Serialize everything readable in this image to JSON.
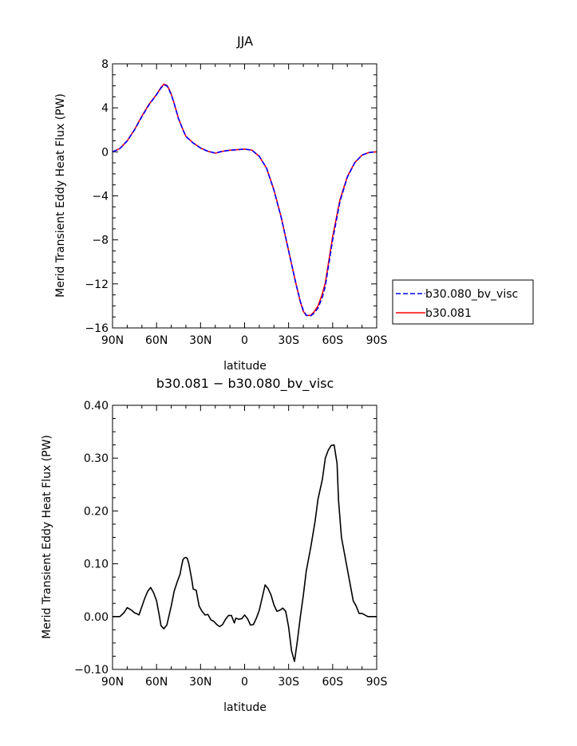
{
  "chart_data": [
    {
      "type": "line",
      "title": "JJA",
      "xlabel": "latitude",
      "ylabel": "Merid Transient Eddy Heat Flux (PW)",
      "x_tick_labels": [
        "90N",
        "60N",
        "30N",
        "0",
        "30S",
        "60S",
        "90S"
      ],
      "x_tick_values": [
        90,
        60,
        30,
        0,
        -30,
        -60,
        -90
      ],
      "xlim": [
        90,
        -90
      ],
      "y_tick_labels": [
        "8",
        "4",
        "0",
        "−4",
        "−8",
        "−12",
        "−16"
      ],
      "y_tick_values": [
        8,
        4,
        0,
        -4,
        -8,
        -12,
        -16
      ],
      "ylim": [
        -16,
        8
      ],
      "legend_position": "outside-right",
      "series": [
        {
          "name": "b30.080_bv_visc",
          "color": "#0000ff",
          "dash": "dashed",
          "x": [
            90,
            85,
            80,
            75,
            70,
            65,
            60,
            57,
            55,
            53,
            52,
            50,
            48,
            45,
            42,
            40,
            35,
            30,
            25,
            20,
            15,
            10,
            5,
            0,
            -5,
            -10,
            -15,
            -20,
            -25,
            -30,
            -35,
            -38,
            -40,
            -42,
            -45,
            -47,
            -50,
            -53,
            -55,
            -60,
            -65,
            -70,
            -75,
            -80,
            -85,
            -90
          ],
          "y": [
            0,
            0.3,
            1.0,
            2.0,
            3.2,
            4.3,
            5.2,
            5.8,
            6.1,
            6.0,
            5.8,
            5.2,
            4.4,
            3.0,
            2.0,
            1.4,
            0.8,
            0.35,
            0.05,
            -0.1,
            0.05,
            0.15,
            0.2,
            0.25,
            0.15,
            -0.4,
            -1.5,
            -3.5,
            -6.0,
            -9.0,
            -12.0,
            -13.6,
            -14.4,
            -14.85,
            -14.9,
            -14.7,
            -14.2,
            -13.2,
            -12.2,
            -8.0,
            -4.5,
            -2.3,
            -1.0,
            -0.3,
            -0.05,
            0
          ]
        },
        {
          "name": "b30.081",
          "color": "#ff0000",
          "dash": "solid",
          "x": [
            90,
            85,
            80,
            75,
            70,
            65,
            60,
            57,
            55,
            53,
            52,
            50,
            48,
            45,
            42,
            40,
            35,
            30,
            25,
            20,
            15,
            10,
            5,
            0,
            -5,
            -10,
            -15,
            -20,
            -25,
            -30,
            -35,
            -38,
            -40,
            -42,
            -45,
            -47,
            -50,
            -53,
            -55,
            -60,
            -65,
            -70,
            -75,
            -80,
            -85,
            -90
          ],
          "y": [
            0,
            0.3,
            1.0,
            2.02,
            3.25,
            4.35,
            5.21,
            5.85,
            6.15,
            6.05,
            5.85,
            5.25,
            4.4,
            3.01,
            2.01,
            1.41,
            0.81,
            0.35,
            0.05,
            -0.12,
            0.05,
            0.15,
            0.2,
            0.25,
            0.16,
            -0.42,
            -1.49,
            -3.46,
            -5.97,
            -8.99,
            -12.0,
            -13.65,
            -14.49,
            -14.87,
            -14.85,
            -14.6,
            -14.0,
            -12.9,
            -11.9,
            -7.7,
            -4.35,
            -2.25,
            -0.99,
            -0.3,
            -0.05,
            0
          ]
        }
      ]
    },
    {
      "type": "line",
      "title": "b30.081 − b30.080_bv_visc",
      "xlabel": "latitude",
      "ylabel": "Merid Transient Eddy Heat Flux (PW)",
      "x_tick_labels": [
        "90N",
        "60N",
        "30N",
        "0",
        "30S",
        "60S",
        "90S"
      ],
      "x_tick_values": [
        90,
        60,
        30,
        0,
        -30,
        -60,
        -90
      ],
      "xlim": [
        90,
        -90
      ],
      "y_tick_labels": [
        "0.40",
        "0.30",
        "0.20",
        "0.10",
        "0.00",
        "−0.10"
      ],
      "y_tick_values": [
        0.4,
        0.3,
        0.2,
        0.1,
        0.0,
        -0.1
      ],
      "ylim": [
        -0.1,
        0.4
      ],
      "series": [
        {
          "color": "#000000",
          "x": [
            90,
            87,
            85,
            82,
            80,
            77,
            75,
            73,
            72,
            70,
            68,
            66,
            64,
            62,
            60,
            58,
            57,
            55,
            53,
            50,
            48,
            46,
            44,
            43,
            42,
            41,
            40,
            39,
            38,
            37,
            36,
            35,
            33,
            31,
            29,
            27,
            25,
            23,
            21,
            19,
            17,
            15,
            13,
            11,
            9,
            7,
            6,
            4,
            2,
            0,
            -2,
            -4,
            -6,
            -8,
            -10,
            -12,
            -14,
            -16,
            -18,
            -20,
            -22,
            -24,
            -26,
            -28,
            -30,
            -32,
            -34,
            -36,
            -38,
            -40,
            -42,
            -45,
            -48,
            -50,
            -53,
            -55,
            -57,
            -59,
            -61,
            -63,
            -64,
            -65,
            -66,
            -68,
            -70,
            -72,
            -74,
            -76,
            -78,
            -80,
            -82,
            -84,
            -86,
            -88,
            -90
          ],
          "y": [
            0,
            0,
            0,
            0.008,
            0.017,
            0.012,
            0.007,
            0.005,
            0.003,
            0.019,
            0.035,
            0.048,
            0.055,
            0.045,
            0.03,
            0.0,
            -0.017,
            -0.023,
            -0.016,
            0.02,
            0.048,
            0.065,
            0.08,
            0.095,
            0.108,
            0.111,
            0.112,
            0.11,
            0.1,
            0.085,
            0.07,
            0.052,
            0.05,
            0.02,
            0.01,
            0.003,
            0.004,
            -0.006,
            -0.009,
            -0.015,
            -0.019,
            -0.015,
            -0.005,
            0.002,
            0.002,
            -0.012,
            -0.003,
            -0.005,
            -0.004,
            0.003,
            -0.004,
            -0.016,
            -0.015,
            -0.003,
            0.012,
            0.036,
            0.06,
            0.053,
            0.041,
            0.022,
            0.01,
            0.012,
            0.016,
            0.01,
            -0.02,
            -0.065,
            -0.085,
            -0.045,
            0.0,
            0.04,
            0.086,
            0.13,
            0.18,
            0.222,
            0.26,
            0.3,
            0.315,
            0.324,
            0.325,
            0.29,
            0.22,
            0.185,
            0.15,
            0.12,
            0.09,
            0.06,
            0.03,
            0.02,
            0.006,
            0.006,
            0.003,
            0.0,
            0.0,
            0.0,
            0.0
          ]
        }
      ]
    }
  ]
}
